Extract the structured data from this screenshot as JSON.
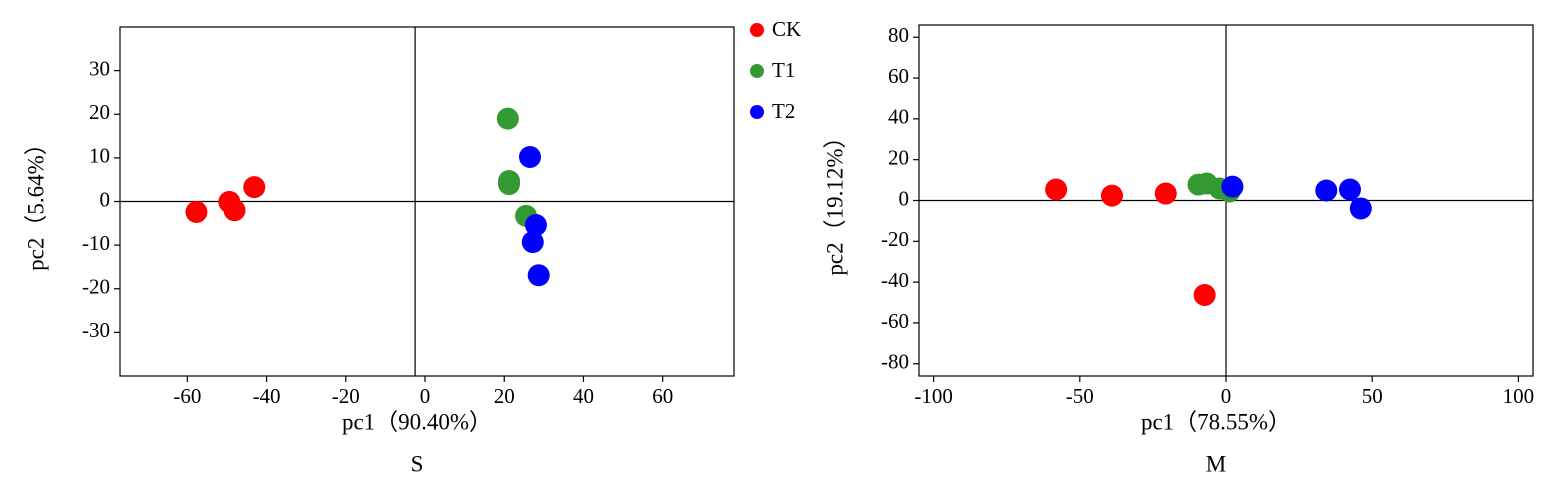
{
  "chart_data": [
    {
      "type": "scatter",
      "title": "S",
      "x_label": "pc1（90.40%）",
      "y_label": "pc2（5.64%）",
      "xlim": [
        -77,
        78
      ],
      "ylim": [
        -40,
        40
      ],
      "xticks": [
        -60,
        -40,
        -20,
        0,
        20,
        40,
        60
      ],
      "yticks": [
        -30,
        -20,
        -10,
        0,
        10,
        20,
        30
      ],
      "reference_lines": {
        "x": -2.5,
        "y": 0
      },
      "legend": "right",
      "series": [
        {
          "name": "CK",
          "color": "#ff0000",
          "x": [
            -57.7,
            -49.4,
            -48.1,
            -43.1
          ],
          "values": [
            -2.4,
            -0.1,
            -2.0,
            3.3
          ]
        },
        {
          "name": "T1",
          "color": "#339933",
          "x": [
            20.9,
            21.2,
            21.2,
            25.5
          ],
          "values": [
            19.0,
            4.7,
            4.0,
            -3.3
          ]
        },
        {
          "name": "T2",
          "color": "#0000ff",
          "x": [
            26.5,
            28.0,
            27.2,
            28.7
          ],
          "values": [
            10.2,
            -5.4,
            -9.3,
            -16.9
          ]
        }
      ]
    },
    {
      "type": "scatter",
      "title": "M",
      "x_label": "pc1（78.55%）",
      "y_label": "pc2（19.12%）",
      "xlim": [
        -105,
        105
      ],
      "ylim": [
        -86,
        86
      ],
      "xticks": [
        -100,
        -50,
        0,
        50,
        100
      ],
      "yticks": [
        -80,
        -60,
        -40,
        -20,
        0,
        20,
        40,
        60,
        80
      ],
      "reference_lines": {
        "x": 0,
        "y": 0
      },
      "series": [
        {
          "name": "CK",
          "color": "#ff0000",
          "x": [
            -58.1,
            -39.0,
            -20.6,
            -7.3
          ],
          "values": [
            5.4,
            2.4,
            3.4,
            -46.3
          ]
        },
        {
          "name": "T1",
          "color": "#339933",
          "x": [
            -9.4,
            -6.6,
            -2.2,
            1.2
          ],
          "values": [
            7.8,
            8.3,
            5.9,
            4.4
          ]
        },
        {
          "name": "T2",
          "color": "#0000ff",
          "x": [
            2.2,
            34.3,
            42.4,
            46.1
          ],
          "values": [
            6.8,
            4.9,
            5.4,
            -3.9
          ]
        }
      ]
    }
  ]
}
